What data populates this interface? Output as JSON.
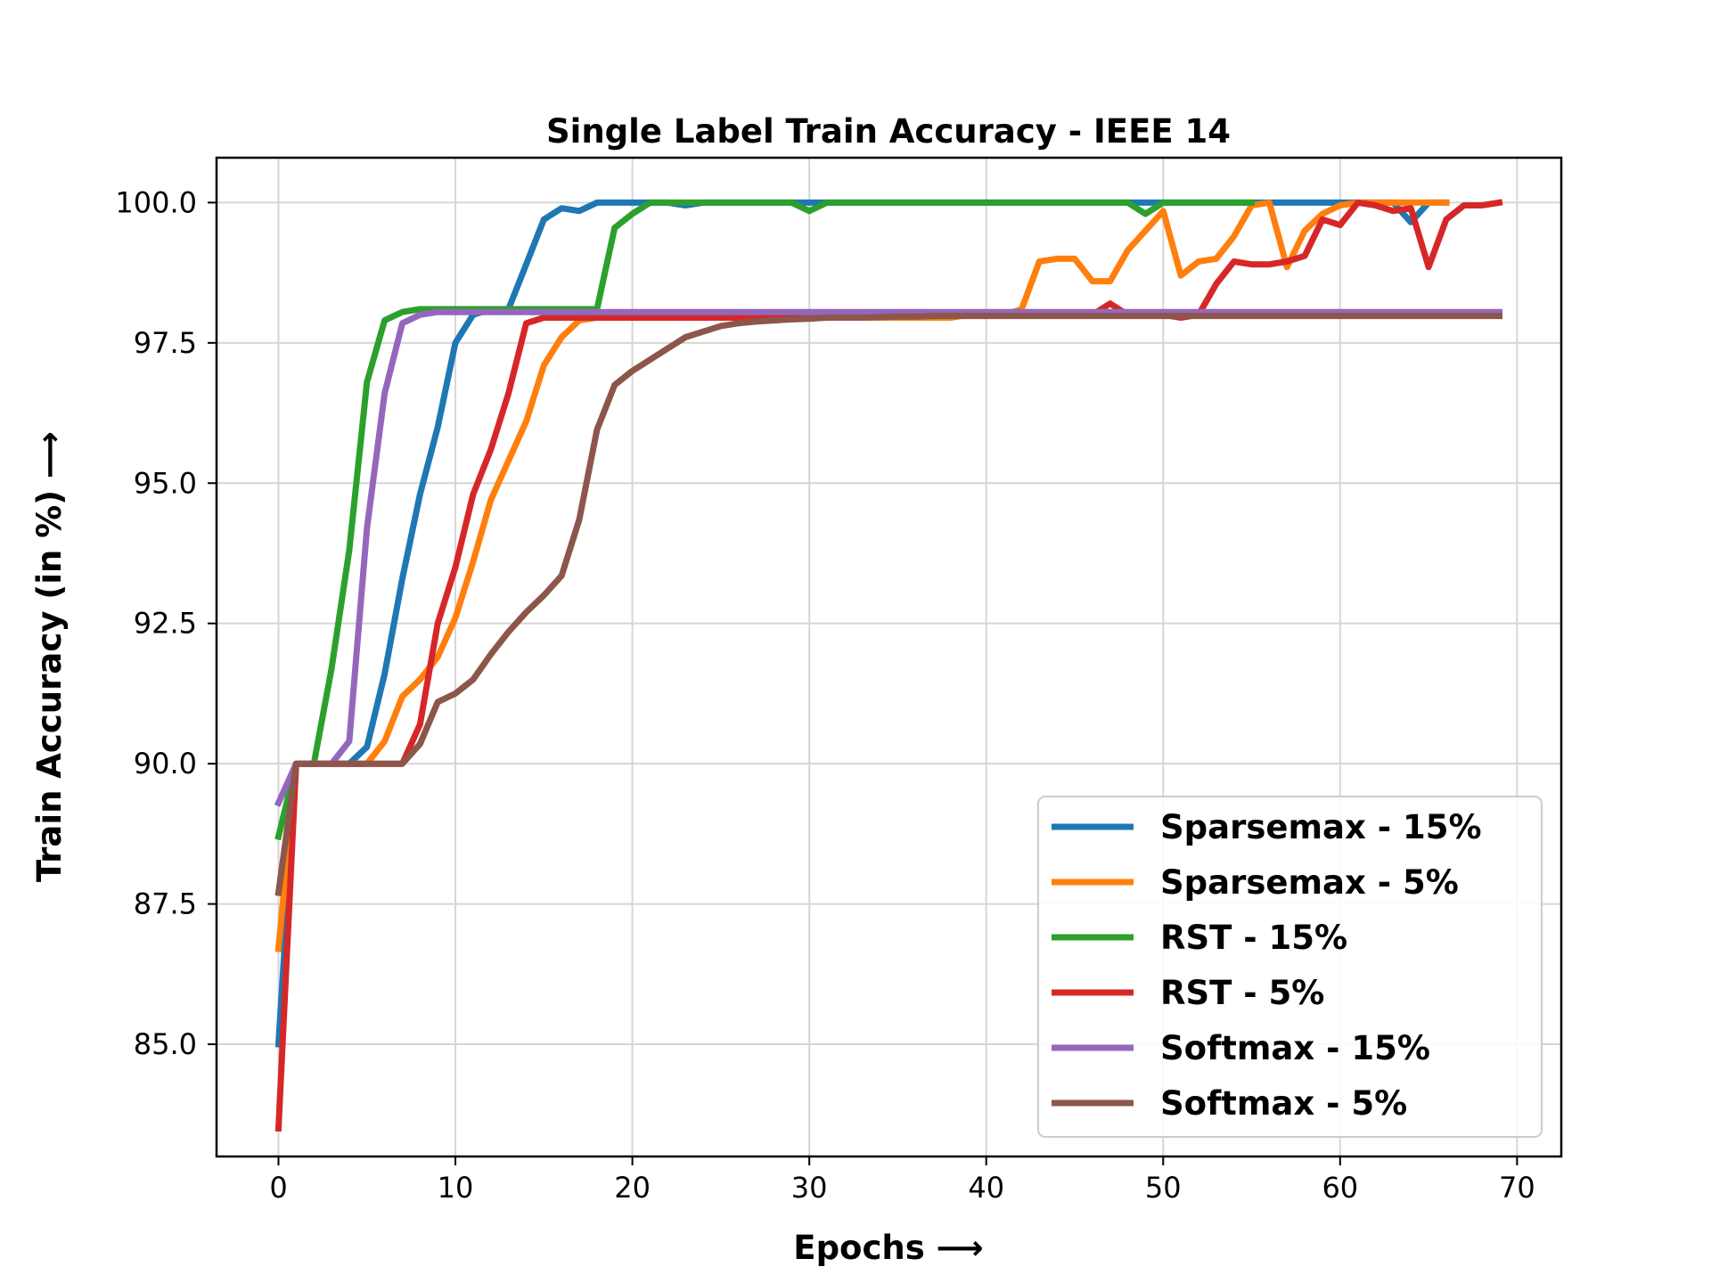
{
  "chart_data": {
    "type": "line",
    "title": "Single Label Train Accuracy - IEEE 14",
    "xlabel": "Epochs  ⟶",
    "ylabel": "Train Accuracy (in %)  ⟶",
    "xlim": [
      -3.5,
      72.5
    ],
    "ylim": [
      83.0,
      100.8
    ],
    "xticks": [
      0,
      10,
      20,
      30,
      40,
      50,
      60,
      70
    ],
    "yticks": [
      85.0,
      87.5,
      90.0,
      92.5,
      95.0,
      97.5,
      100.0
    ],
    "xtick_labels": [
      "0",
      "10",
      "20",
      "30",
      "40",
      "50",
      "60",
      "70"
    ],
    "ytick_labels": [
      "85.0",
      "87.5",
      "90.0",
      "92.5",
      "95.0",
      "97.5",
      "100.0"
    ],
    "grid": true,
    "legend_position": "lower-right",
    "series": [
      {
        "name": "Sparsemax - 15%",
        "color": "#1f77b4",
        "values": [
          85.0,
          90.0,
          90.0,
          90.0,
          90.0,
          90.3,
          91.6,
          93.3,
          94.8,
          96.0,
          97.5,
          98.0,
          98.1,
          98.1,
          98.9,
          99.7,
          99.9,
          99.85,
          100.0,
          100.0,
          100.0,
          100.0,
          100.0,
          99.95,
          100.0,
          100.0,
          100.0,
          100.0,
          100.0,
          100.0,
          100.0,
          100.0,
          100.0,
          100.0,
          100.0,
          100.0,
          100.0,
          100.0,
          100.0,
          100.0,
          100.0,
          100.0,
          100.0,
          100.0,
          100.0,
          100.0,
          100.0,
          100.0,
          100.0,
          100.0,
          100.0,
          100.0,
          100.0,
          100.0,
          100.0,
          100.0,
          100.0,
          100.0,
          100.0,
          100.0,
          100.0,
          100.0,
          100.0,
          100.0,
          99.65,
          100.0,
          100.0
        ]
      },
      {
        "name": "Sparsemax - 5%",
        "color": "#ff7f0e",
        "values": [
          86.7,
          90.0,
          90.0,
          90.0,
          90.0,
          90.0,
          90.4,
          91.2,
          91.5,
          91.9,
          92.6,
          93.6,
          94.7,
          95.4,
          96.1,
          97.1,
          97.6,
          97.9,
          97.95,
          97.95,
          97.95,
          97.95,
          97.95,
          97.95,
          97.95,
          97.95,
          97.95,
          97.95,
          97.95,
          97.95,
          97.95,
          97.95,
          97.95,
          97.95,
          97.95,
          97.95,
          97.95,
          97.95,
          97.95,
          98.0,
          98.0,
          98.0,
          98.1,
          98.95,
          99.0,
          99.0,
          98.6,
          98.6,
          99.15,
          99.5,
          99.85,
          98.7,
          98.95,
          99.0,
          99.4,
          99.95,
          100.0,
          98.85,
          99.5,
          99.8,
          99.95,
          100.0,
          100.0,
          100.0,
          100.0,
          100.0,
          100.0
        ]
      },
      {
        "name": "RST - 15%",
        "color": "#2ca02c",
        "values": [
          88.7,
          90.0,
          90.0,
          91.7,
          93.8,
          96.8,
          97.9,
          98.05,
          98.1,
          98.1,
          98.1,
          98.1,
          98.1,
          98.1,
          98.1,
          98.1,
          98.1,
          98.1,
          98.1,
          99.55,
          99.8,
          100.0,
          100.0,
          100.0,
          100.0,
          100.0,
          100.0,
          100.0,
          100.0,
          100.0,
          99.85,
          100.0,
          100.0,
          100.0,
          100.0,
          100.0,
          100.0,
          100.0,
          100.0,
          100.0,
          100.0,
          100.0,
          100.0,
          100.0,
          100.0,
          100.0,
          100.0,
          100.0,
          100.0,
          99.8,
          100.0,
          100.0,
          100.0,
          100.0,
          100.0,
          100.0
        ]
      },
      {
        "name": "RST - 5%",
        "color": "#d62728",
        "values": [
          83.5,
          90.0,
          90.0,
          90.0,
          90.0,
          90.0,
          90.0,
          90.0,
          90.7,
          92.5,
          93.5,
          94.8,
          95.6,
          96.6,
          97.85,
          97.95,
          97.95,
          97.95,
          97.95,
          97.95,
          97.95,
          97.95,
          97.95,
          97.95,
          97.95,
          97.95,
          97.95,
          97.95,
          97.95,
          97.95,
          97.95,
          98.0,
          98.0,
          98.0,
          98.0,
          98.0,
          98.0,
          98.0,
          98.0,
          98.0,
          98.0,
          98.0,
          98.0,
          98.0,
          98.0,
          98.0,
          98.0,
          98.2,
          98.0,
          98.0,
          98.0,
          97.95,
          98.0,
          98.55,
          98.95,
          98.9,
          98.9,
          98.95,
          99.05,
          99.7,
          99.6,
          100.0,
          99.95,
          99.85,
          99.9,
          98.85,
          99.7,
          99.95,
          99.95,
          100.0
        ]
      },
      {
        "name": "Softmax - 15%",
        "color": "#9467bd",
        "values": [
          89.3,
          90.0,
          90.0,
          90.0,
          90.4,
          94.2,
          96.6,
          97.85,
          98.0,
          98.05,
          98.05,
          98.05,
          98.05,
          98.05,
          98.05,
          98.05,
          98.05,
          98.05,
          98.05,
          98.05,
          98.05,
          98.05,
          98.05,
          98.05,
          98.05,
          98.05,
          98.05,
          98.05,
          98.05,
          98.05,
          98.05,
          98.05,
          98.05,
          98.05,
          98.05,
          98.05,
          98.05,
          98.05,
          98.05,
          98.05,
          98.05,
          98.05,
          98.05,
          98.05,
          98.05,
          98.05,
          98.05,
          98.05,
          98.05,
          98.05,
          98.05,
          98.05,
          98.05,
          98.05,
          98.05,
          98.05,
          98.05,
          98.05,
          98.05,
          98.05,
          98.05,
          98.05,
          98.05,
          98.05,
          98.05,
          98.05,
          98.05,
          98.05,
          98.05,
          98.05
        ]
      },
      {
        "name": "Softmax - 5%",
        "color": "#8c564b",
        "values": [
          87.7,
          90.0,
          90.0,
          90.0,
          90.0,
          90.0,
          90.0,
          90.0,
          90.35,
          91.1,
          91.25,
          91.5,
          91.95,
          92.35,
          92.7,
          93.0,
          93.35,
          94.35,
          95.95,
          96.75,
          97.0,
          97.2,
          97.4,
          97.6,
          97.7,
          97.8,
          97.85,
          97.88,
          97.9,
          97.92,
          97.93,
          97.95,
          97.95,
          97.95,
          97.96,
          97.97,
          97.97,
          97.98,
          97.98,
          97.98,
          97.98,
          97.98,
          97.98,
          97.98,
          97.98,
          97.98,
          97.98,
          97.98,
          97.98,
          97.98,
          97.98,
          97.98,
          97.98,
          97.98,
          97.98,
          97.98,
          97.98,
          97.98,
          97.98,
          97.98,
          97.98,
          97.98,
          97.98,
          97.98,
          97.98,
          97.98,
          97.98,
          97.98,
          97.98,
          97.98
        ]
      }
    ]
  }
}
